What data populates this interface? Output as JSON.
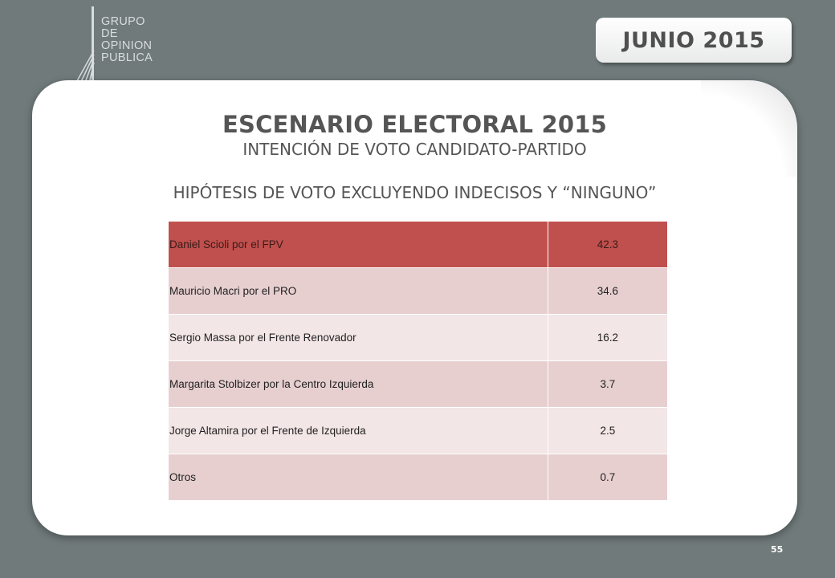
{
  "logo": {
    "lines": [
      "GRUPO",
      "DE",
      "OPINION",
      "PUBLICA"
    ]
  },
  "date": "JUNIO 2015",
  "slide": {
    "title": "ESCENARIO ELECTORAL 2015",
    "subtitle": "INTENCIÓN DE VOTO CANDIDATO-PARTIDO",
    "hypothesis": "HIPÓTESIS DE  VOTO EXCLUYENDO INDECISOS Y “NINGUNO”"
  },
  "table": {
    "rows": [
      {
        "label": "Daniel Scioli por el FPV",
        "value": "42.3"
      },
      {
        "label": "Mauricio Macri por el PRO",
        "value": "34.6"
      },
      {
        "label": "Sergio Massa por el Frente Renovador",
        "value": "16.2"
      },
      {
        "label": "Margarita Stolbizer por la Centro Izquierda",
        "value": "3.7"
      },
      {
        "label": "Jorge Altamira por el Frente de Izquierda",
        "value": "2.5"
      },
      {
        "label": "Otros",
        "value": "0.7"
      }
    ]
  },
  "colors": {
    "background": "#707a7b",
    "header_row": "#c0504d",
    "row_odd": "#e7cfd0",
    "row_even": "#f3e6e7"
  },
  "page_number": "55"
}
